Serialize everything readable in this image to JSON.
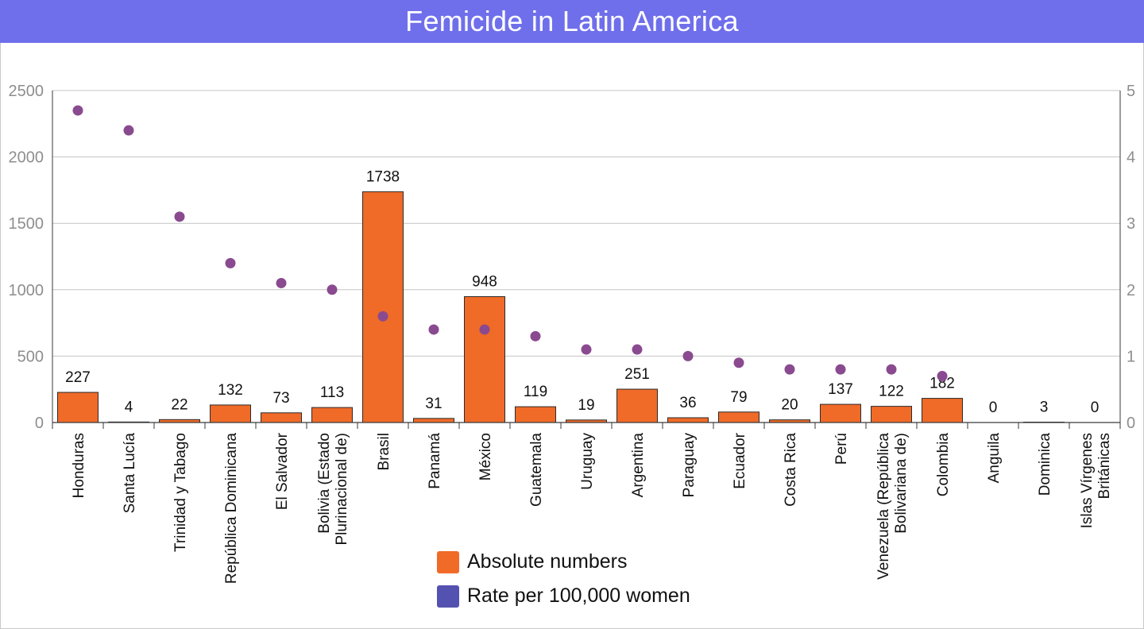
{
  "header": {
    "title": "Femicide in Latin America"
  },
  "chart_data": {
    "type": "bar",
    "categories": [
      "Honduras",
      "Santa Lucía",
      "Trinidad y Tabago",
      "República Dominicana",
      "El Salvador",
      "Bolivia (Estado Plurinacional de)",
      "Brasil",
      "Panamá",
      "México",
      "Guatemala",
      "Uruguay",
      "Argentina",
      "Paraguay",
      "Ecuador",
      "Costa Rica",
      "Perú",
      "Venezuela (República Bolivariana de)",
      "Colombia",
      "Anguila",
      "Dominica",
      "Islas Vírgenes Británicas"
    ],
    "category_label_lines": [
      [
        "Honduras"
      ],
      [
        "Santa Lucía"
      ],
      [
        "Trinidad y Tabago"
      ],
      [
        "República Dominicana"
      ],
      [
        "El Salvador"
      ],
      [
        "Bolivia (Estado",
        "Plurinacional de)"
      ],
      [
        "Brasil"
      ],
      [
        "Panamá"
      ],
      [
        "México"
      ],
      [
        "Guatemala"
      ],
      [
        "Uruguay"
      ],
      [
        "Argentina"
      ],
      [
        "Paraguay"
      ],
      [
        "Ecuador"
      ],
      [
        "Costa Rica"
      ],
      [
        "Perú"
      ],
      [
        "Venezuela (República",
        "Bolivariana de)"
      ],
      [
        "Colombia"
      ],
      [
        "Anguila"
      ],
      [
        "Dominica"
      ],
      [
        "Islas Vírgenes",
        "Británicas"
      ]
    ],
    "series": [
      {
        "name": "Absolute numbers",
        "kind": "bar",
        "axis": "left",
        "color": "#f06a28",
        "values": [
          227,
          4,
          22,
          132,
          73,
          113,
          1738,
          31,
          948,
          119,
          19,
          251,
          36,
          79,
          20,
          137,
          122,
          182,
          0,
          3,
          0
        ],
        "value_labels": [
          "227",
          "4",
          "22",
          "132",
          "73",
          "113",
          "1738",
          "31",
          "948",
          "119",
          "19",
          "251",
          "36",
          "79",
          "20",
          "137",
          "122",
          "182",
          "0",
          "3",
          "0"
        ]
      },
      {
        "name": "Rate per 100,000 women",
        "kind": "scatter",
        "axis": "right",
        "color": "#8a4a8f",
        "values": [
          4.7,
          4.4,
          3.1,
          2.4,
          2.1,
          2.0,
          1.6,
          1.4,
          1.4,
          1.3,
          1.1,
          1.1,
          1.0,
          0.9,
          0.8,
          0.8,
          0.8,
          0.7,
          null,
          null,
          null
        ]
      }
    ],
    "y_left": {
      "min": 0,
      "max": 2500,
      "ticks": [
        "0",
        "500",
        "1000",
        "1500",
        "2000",
        "2500"
      ]
    },
    "y_right": {
      "min": 0,
      "max": 5,
      "ticks": [
        "0",
        "1",
        "2",
        "3",
        "4",
        "5"
      ]
    },
    "grid": true,
    "legend": {
      "placement": "bottom-center",
      "items": [
        {
          "label": "Absolute numbers",
          "color": "#f06a28"
        },
        {
          "label": "Rate per 100,000 women",
          "color": "#5352b0"
        }
      ]
    }
  }
}
